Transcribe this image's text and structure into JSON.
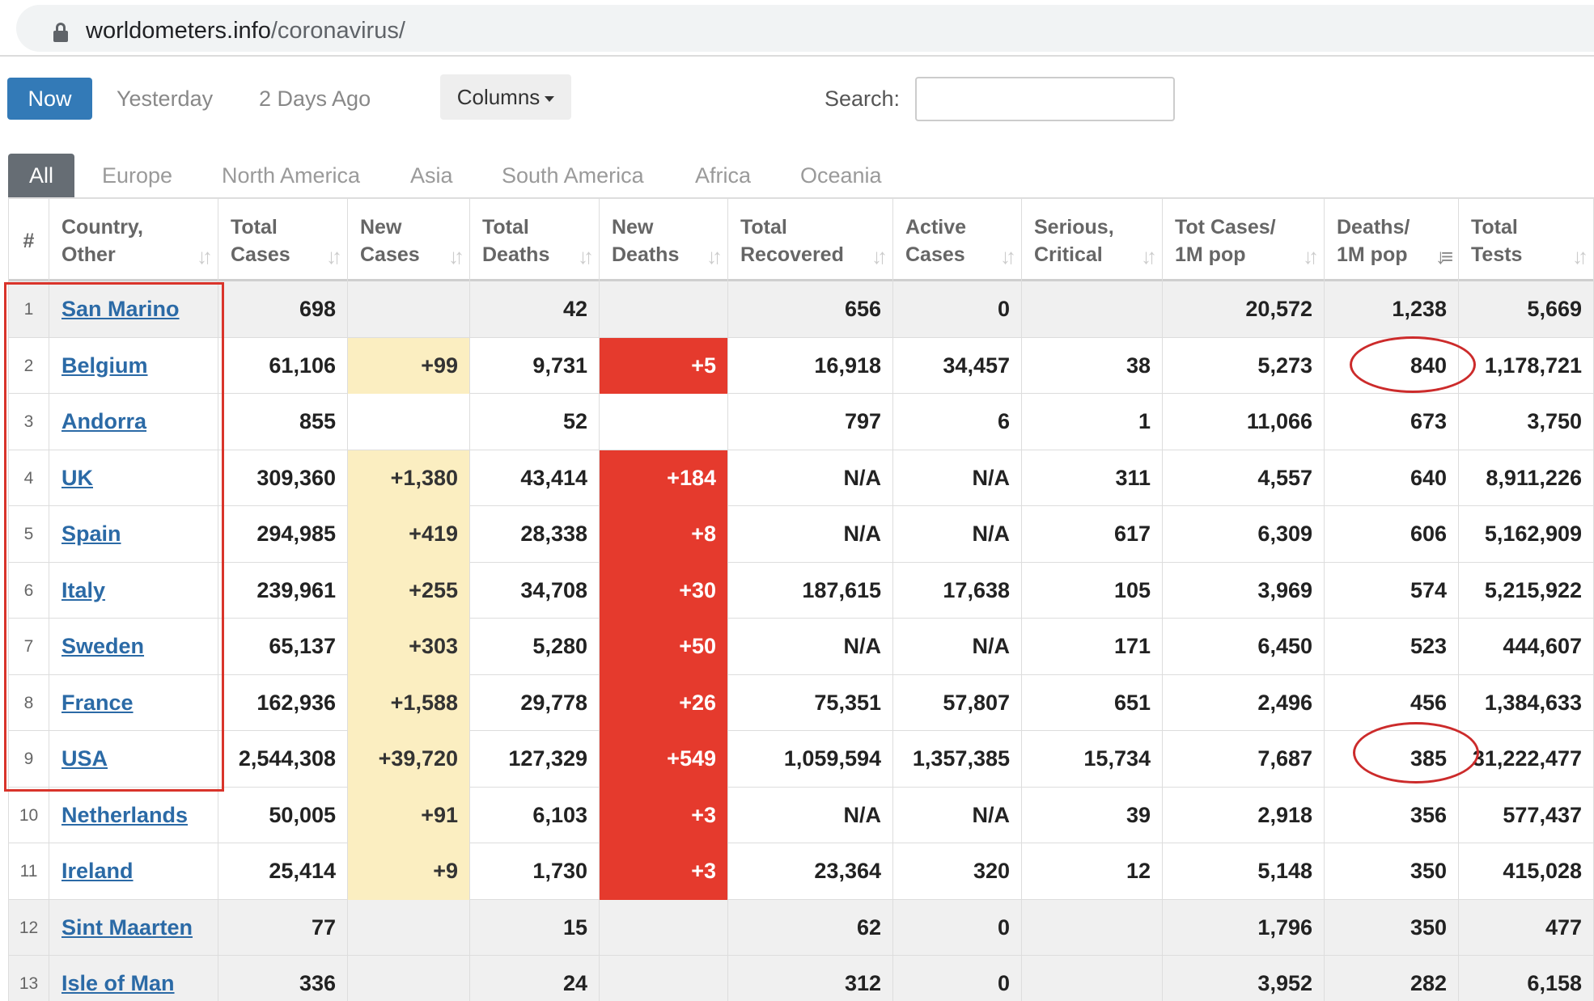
{
  "browser": {
    "url_domain": "worldometers.info",
    "url_path": "/coronavirus/"
  },
  "date_buttons": {
    "now": "Now",
    "yesterday": "Yesterday",
    "two_days_ago": "2 Days Ago"
  },
  "columns_button": "Columns",
  "search": {
    "label": "Search:",
    "value": "",
    "placeholder": ""
  },
  "region_tabs": [
    "All",
    "Europe",
    "North America",
    "Asia",
    "South America",
    "Africa",
    "Oceania"
  ],
  "table": {
    "headers": [
      [
        "#",
        ""
      ],
      [
        "Country,",
        "Other"
      ],
      [
        "Total",
        "Cases"
      ],
      [
        "New",
        "Cases"
      ],
      [
        "Total",
        "Deaths"
      ],
      [
        "New",
        "Deaths"
      ],
      [
        "Total",
        "Recovered"
      ],
      [
        "Active",
        "Cases"
      ],
      [
        "Serious,",
        "Critical"
      ],
      [
        "Tot Cases/",
        "1M pop"
      ],
      [
        "Deaths/",
        "1M pop"
      ],
      [
        "Total",
        "Tests"
      ]
    ],
    "rows": [
      [
        "1",
        "San Marino",
        "698",
        "",
        "42",
        "",
        "656",
        "0",
        "",
        "20,572",
        "1,238",
        "5,669"
      ],
      [
        "2",
        "Belgium",
        "61,106",
        "+99",
        "9,731",
        "+5",
        "16,918",
        "34,457",
        "38",
        "5,273",
        "840",
        "1,178,721"
      ],
      [
        "3",
        "Andorra",
        "855",
        "",
        "52",
        "",
        "797",
        "6",
        "1",
        "11,066",
        "673",
        "3,750"
      ],
      [
        "4",
        "UK",
        "309,360",
        "+1,380",
        "43,414",
        "+184",
        "N/A",
        "N/A",
        "311",
        "4,557",
        "640",
        "8,911,226"
      ],
      [
        "5",
        "Spain",
        "294,985",
        "+419",
        "28,338",
        "+8",
        "N/A",
        "N/A",
        "617",
        "6,309",
        "606",
        "5,162,909"
      ],
      [
        "6",
        "Italy",
        "239,961",
        "+255",
        "34,708",
        "+30",
        "187,615",
        "17,638",
        "105",
        "3,969",
        "574",
        "5,215,922"
      ],
      [
        "7",
        "Sweden",
        "65,137",
        "+303",
        "5,280",
        "+50",
        "N/A",
        "N/A",
        "171",
        "6,450",
        "523",
        "444,607"
      ],
      [
        "8",
        "France",
        "162,936",
        "+1,588",
        "29,778",
        "+26",
        "75,351",
        "57,807",
        "651",
        "2,496",
        "456",
        "1,384,633"
      ],
      [
        "9",
        "USA",
        "2,544,308",
        "+39,720",
        "127,329",
        "+549",
        "1,059,594",
        "1,357,385",
        "15,734",
        "7,687",
        "385",
        "31,222,477"
      ],
      [
        "10",
        "Netherlands",
        "50,005",
        "+91",
        "6,103",
        "+3",
        "N/A",
        "N/A",
        "39",
        "2,918",
        "356",
        "577,437"
      ],
      [
        "11",
        "Ireland",
        "25,414",
        "+9",
        "1,730",
        "+3",
        "23,364",
        "320",
        "12",
        "5,148",
        "350",
        "415,028"
      ],
      [
        "12",
        "Sint Maarten",
        "77",
        "",
        "15",
        "",
        "62",
        "0",
        "",
        "1,796",
        "350",
        "477"
      ],
      [
        "13",
        "Isle of Man",
        "336",
        "",
        "24",
        "",
        "312",
        "0",
        "",
        "3,952",
        "282",
        "6,158"
      ]
    ]
  },
  "colors": {
    "primary_button": "#337ab7",
    "active_tab": "#666d74",
    "new_cases_highlight": "#fbeec1",
    "new_deaths_highlight": "#e53a2d",
    "country_link": "#2b6aa6",
    "annotation_red": "#d9342b"
  },
  "icons": {
    "lock": "lock-icon",
    "caret": "caret-down-icon",
    "sort": "sort-arrows-icon"
  }
}
